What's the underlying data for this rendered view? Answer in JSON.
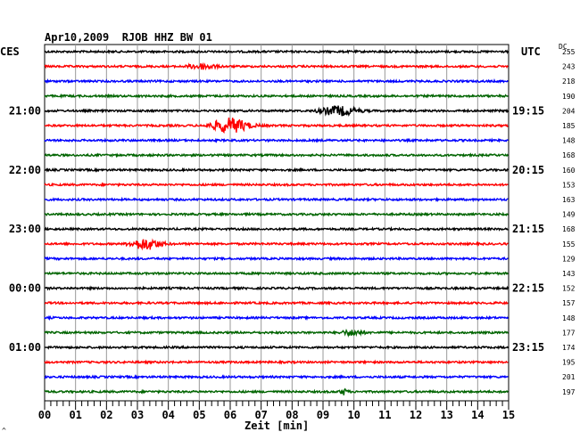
{
  "header": {
    "date": "Apr10,2009",
    "station": "RJOB HHZ BW 01"
  },
  "left_label": "CES",
  "right_label": "UTC",
  "dc_label": "DC",
  "xlabel": "Zeit [min]",
  "footer_mark": "^",
  "colors": {
    "black": "#000000",
    "red": "#ff0000",
    "blue": "#0000ff",
    "green": "#006400",
    "grid": "#999999"
  },
  "chart_data": {
    "type": "line",
    "x_ticks": [
      "00",
      "01",
      "02",
      "03",
      "04",
      "05",
      "06",
      "07",
      "08",
      "09",
      "10",
      "11",
      "12",
      "13",
      "14",
      "15"
    ],
    "xlim": [
      0,
      15
    ],
    "left_time_labels": [
      {
        "trace": 4,
        "label": "21:00"
      },
      {
        "trace": 8,
        "label": "22:00"
      },
      {
        "trace": 12,
        "label": "23:00"
      },
      {
        "trace": 16,
        "label": "00:00"
      },
      {
        "trace": 20,
        "label": "01:00"
      }
    ],
    "right_time_labels": [
      {
        "trace": 4,
        "label": "19:15"
      },
      {
        "trace": 8,
        "label": "20:15"
      },
      {
        "trace": 12,
        "label": "21:15"
      },
      {
        "trace": 16,
        "label": "22:15"
      },
      {
        "trace": 20,
        "label": "23:15"
      }
    ],
    "dc_values": [
      "255",
      "243",
      "218",
      "190",
      "204",
      "185",
      "148",
      "168",
      "160",
      "153",
      "163",
      "149",
      "168",
      "155",
      "129",
      "143",
      "152",
      "157",
      "148",
      "177",
      "174",
      "195",
      "201",
      "197"
    ],
    "trace_colors": [
      "black",
      "red",
      "blue",
      "green",
      "black",
      "red",
      "blue",
      "green",
      "black",
      "red",
      "blue",
      "green",
      "black",
      "red",
      "blue",
      "green",
      "black",
      "red",
      "blue",
      "green",
      "black",
      "red",
      "blue",
      "green"
    ],
    "events": [
      {
        "trace": 1,
        "start_min": 4.5,
        "end_min": 6.2,
        "amplitude": 3
      },
      {
        "trace": 4,
        "start_min": 8.7,
        "end_min": 11.0,
        "amplitude": 5
      },
      {
        "trace": 5,
        "start_min": 5.2,
        "end_min": 7.5,
        "amplitude": 8
      },
      {
        "trace": 13,
        "start_min": 2.6,
        "end_min": 4.5,
        "amplitude": 6
      },
      {
        "trace": 19,
        "start_min": 9.5,
        "end_min": 10.8,
        "amplitude": 3
      },
      {
        "trace": 23,
        "start_min": 9.5,
        "end_min": 10.0,
        "amplitude": 3
      }
    ]
  }
}
